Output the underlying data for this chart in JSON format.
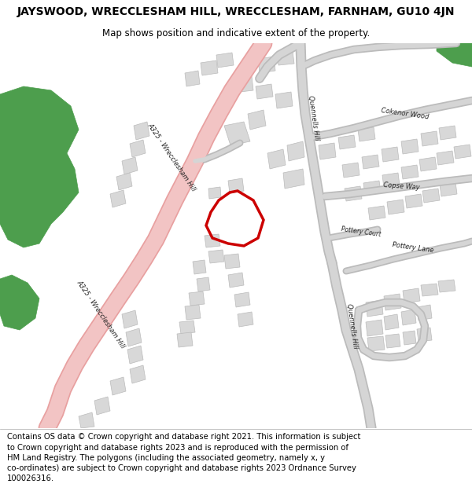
{
  "title": "JAYSWOOD, WRECCLESHAM HILL, WRECCLESHAM, FARNHAM, GU10 4JN",
  "subtitle": "Map shows position and indicative extent of the property.",
  "footer": "Contains OS data © Crown copyright and database right 2021. This information is subject\nto Crown copyright and database rights 2023 and is reproduced with the permission of\nHM Land Registry. The polygons (including the associated geometry, namely x, y\nco-ordinates) are subject to Crown copyright and database rights 2023 Ordnance Survey\n100026316.",
  "bg_color": "#ffffff",
  "map_bg": "#ffffff",
  "road_pink": "#f2c4c4",
  "road_pink_edge": "#e8a0a0",
  "road_gray": "#d5d5d5",
  "road_gray_edge": "#bbbbbb",
  "building_fill": "#d8d8d8",
  "building_edge": "#bbbbbb",
  "green_fill": "#4d9e4d",
  "plot_color": "#cc0000",
  "title_fontsize": 10,
  "subtitle_fontsize": 8.5,
  "footer_fontsize": 7.2,
  "label_fontsize": 6.0
}
